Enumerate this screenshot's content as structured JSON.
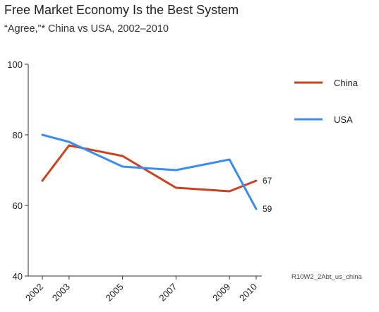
{
  "chart_data": {
    "type": "line",
    "title": "Free Market Economy Is the Best System",
    "subtitle": "“Agree,”* China vs USA, 2002–2010",
    "x": [
      2002,
      2003,
      2005,
      2007,
      2009,
      2010
    ],
    "x_ticks": [
      "2002",
      "2003",
      "2005",
      "2007",
      "2009",
      "2010"
    ],
    "y_ticks": [
      "40",
      "60",
      "80",
      "100"
    ],
    "ylim": [
      40,
      100
    ],
    "xlim": [
      2002,
      2010
    ],
    "grid": false,
    "legend_placement": "top-right",
    "series": [
      {
        "name": "China",
        "color": "#c8431f",
        "values": [
          67,
          77,
          74,
          65,
          64,
          67
        ],
        "end_label": "67"
      },
      {
        "name": "USA",
        "color": "#3c8df0",
        "values": [
          80,
          78,
          71,
          70,
          73,
          59
        ],
        "end_label": "59"
      }
    ],
    "source_note": "R10W2_2Abt_us_china"
  }
}
